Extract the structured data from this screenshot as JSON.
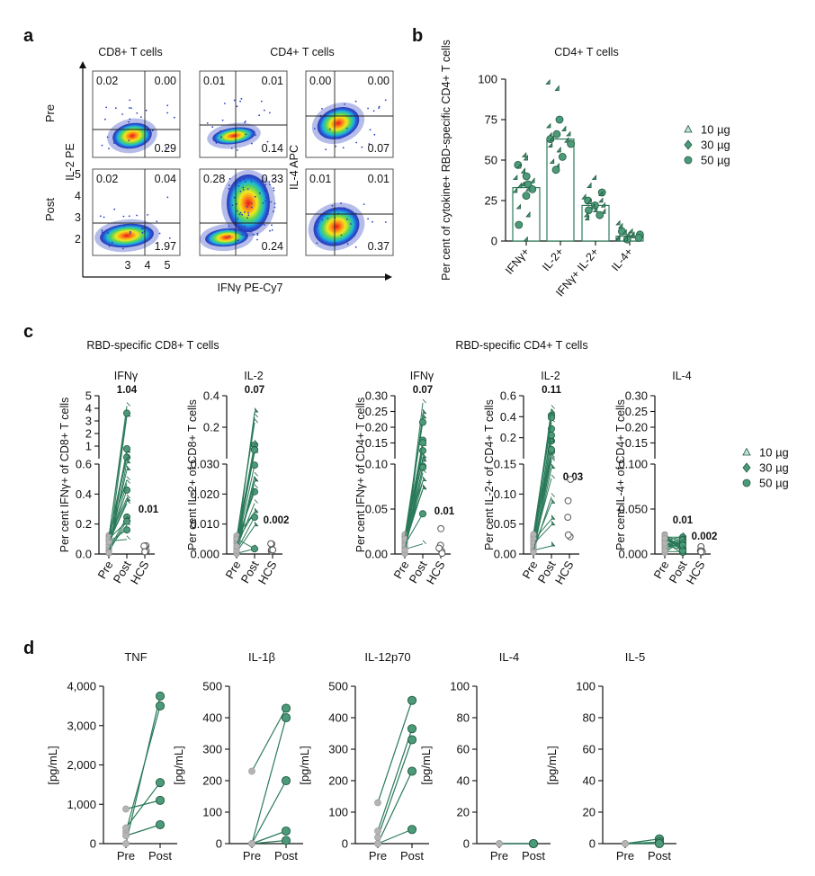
{
  "panels": {
    "a": "a",
    "b": "b",
    "c": "c",
    "d": "d"
  },
  "colors": {
    "green": "#2e7d5b",
    "green_fill": "#4c9a78",
    "grey": "#b4b4b4",
    "line": "#2a7a5a"
  },
  "flow": {
    "col_headers": {
      "cd8": "CD8+ T cells",
      "cd4": "CD4+ T cells"
    },
    "row_labels": {
      "pre": "Pre",
      "post": "Post"
    },
    "y_label_il2": "IL-2 PE",
    "y_label_il4": "IL-4 APC",
    "x_label": "IFNγ PE-Cy7",
    "y_ticks": [
      "5",
      "4",
      "3",
      "2"
    ],
    "x_ticks": [
      "3",
      "4",
      "5"
    ],
    "plots": [
      {
        "q": [
          "0.02",
          "0.00",
          "0.29"
        ]
      },
      {
        "q": [
          "0.01",
          "0.01",
          "0.14"
        ]
      },
      {
        "q": [
          "0.00",
          "0.00",
          "0.07"
        ]
      },
      {
        "q": [
          "0.02",
          "0.04",
          "1.97"
        ]
      },
      {
        "q": [
          "0.28",
          "0.33",
          "0.24"
        ]
      },
      {
        "q": [
          "0.01",
          "0.01",
          "0.37"
        ]
      }
    ]
  },
  "legend": {
    "items": [
      "10 µg",
      "30 µg",
      "50 µg"
    ]
  },
  "chart_data": [
    {
      "id": "b",
      "type": "bar",
      "title": "CD4+ T cells",
      "ylabel": "Per cent of cytokine+ RBD-specific CD4+ T cells",
      "categories": [
        "IFNγ+",
        "IL-2+",
        "IFNγ+ IL-2+",
        "IL-4+"
      ],
      "values": [
        33,
        63,
        22,
        3
      ],
      "ylim": [
        0,
        100
      ],
      "yticks": [
        "0",
        "25",
        "50",
        "75",
        "100"
      ],
      "points": [
        [
          52,
          50,
          47,
          45,
          42,
          40,
          38,
          36,
          35,
          34,
          33,
          32,
          31,
          30,
          28,
          20,
          15,
          10,
          0
        ],
        [
          97,
          93,
          75,
          70,
          68,
          66,
          65,
          64,
          63,
          62,
          61,
          60,
          58,
          55,
          52,
          48,
          45,
          44
        ],
        [
          38,
          33,
          30,
          28,
          26,
          25,
          24,
          23,
          22,
          21,
          20,
          19,
          18,
          17,
          16,
          15,
          13
        ],
        [
          10,
          8,
          6,
          5,
          4,
          4,
          3,
          3,
          2,
          2,
          1,
          1,
          0,
          0
        ]
      ]
    },
    {
      "id": "c",
      "type": "scatter",
      "group_titles": [
        "RBD-specific CD8+ T cells",
        "RBD-specific CD4+ T cells"
      ],
      "categories": [
        "Pre",
        "Post",
        "HCS"
      ],
      "plots": [
        {
          "title": "IFNγ",
          "ylabel": "Per cent IFNγ+ of CD8+ T cells",
          "upper_ticks": [
            "1",
            "2",
            "3",
            "4",
            "5"
          ],
          "lower_ticks": [
            "0.0",
            "0.2",
            "0.4",
            "0.6"
          ],
          "post_label": "1.04",
          "hcs_label": "0.01"
        },
        {
          "title": "IL-2",
          "ylabel": "Per cent IL-2+ of CD8+ T cells",
          "upper_ticks": [
            "0.2",
            "0.4"
          ],
          "lower_ticks": [
            "0.000",
            "0.010",
            "0.020",
            "0.030"
          ],
          "post_label": "0.07",
          "hcs_label": "0.002"
        },
        {
          "title": "IFNγ",
          "ylabel": "Per cent IFNγ+ of CD4+ T cells",
          "upper_ticks": [
            "0.15",
            "0.20",
            "0.25",
            "0.30"
          ],
          "lower_ticks": [
            "0.00",
            "0.05",
            "0.10"
          ],
          "post_label": "0.07",
          "hcs_label": "0.01"
        },
        {
          "title": "IL-2",
          "ylabel": "Per cent IL-2+ of CD4+ T cells",
          "upper_ticks": [
            "0.2",
            "0.4",
            "0.6"
          ],
          "lower_ticks": [
            "0.00",
            "0.05",
            "0.10",
            "0.15"
          ],
          "post_label": "0.11",
          "hcs_label": "0.03"
        },
        {
          "title": "IL-4",
          "ylabel": "Per cent IL-4+ of CD4+ T cells",
          "upper_ticks": [
            "0.15",
            "0.20",
            "0.25",
            "0.30"
          ],
          "lower_ticks": [
            "0.000",
            "0.050",
            "0.100"
          ],
          "post_label": "0.01",
          "hcs_label": "0.002"
        }
      ]
    },
    {
      "id": "d",
      "type": "line",
      "ylabel": "[pg/mL]",
      "categories": [
        "Pre",
        "Post"
      ],
      "plots": [
        {
          "title": "TNF",
          "ylim": [
            0,
            4000
          ],
          "yticks": [
            "0",
            "1,000",
            "2,000",
            "3,000",
            "4,000"
          ],
          "pairs": [
            [
              0,
              3750
            ],
            [
              300,
              3500
            ],
            [
              400,
              1550
            ],
            [
              880,
              1100
            ],
            [
              200,
              480
            ]
          ]
        },
        {
          "title": "IL-1β",
          "ylim": [
            0,
            500
          ],
          "yticks": [
            "0",
            "100",
            "200",
            "300",
            "400",
            "500"
          ],
          "pairs": [
            [
              230,
              430
            ],
            [
              0,
              400
            ],
            [
              0,
              200
            ],
            [
              0,
              40
            ],
            [
              0,
              10
            ]
          ]
        },
        {
          "title": "IL-12p70",
          "ylim": [
            0,
            500
          ],
          "yticks": [
            "0",
            "100",
            "200",
            "300",
            "400",
            "500"
          ],
          "pairs": [
            [
              130,
              455
            ],
            [
              40,
              365
            ],
            [
              20,
              330
            ],
            [
              0,
              230
            ],
            [
              0,
              45
            ]
          ]
        },
        {
          "title": "IL-4",
          "ylim": [
            0,
            100
          ],
          "yticks": [
            "0",
            "20",
            "40",
            "60",
            "80",
            "100"
          ],
          "pairs": [
            [
              0,
              0
            ],
            [
              0,
              0
            ]
          ]
        },
        {
          "title": "IL-5",
          "ylim": [
            0,
            100
          ],
          "yticks": [
            "0",
            "20",
            "40",
            "60",
            "80",
            "100"
          ],
          "pairs": [
            [
              0,
              3
            ],
            [
              0,
              1
            ],
            [
              0,
              0
            ]
          ]
        }
      ]
    }
  ]
}
